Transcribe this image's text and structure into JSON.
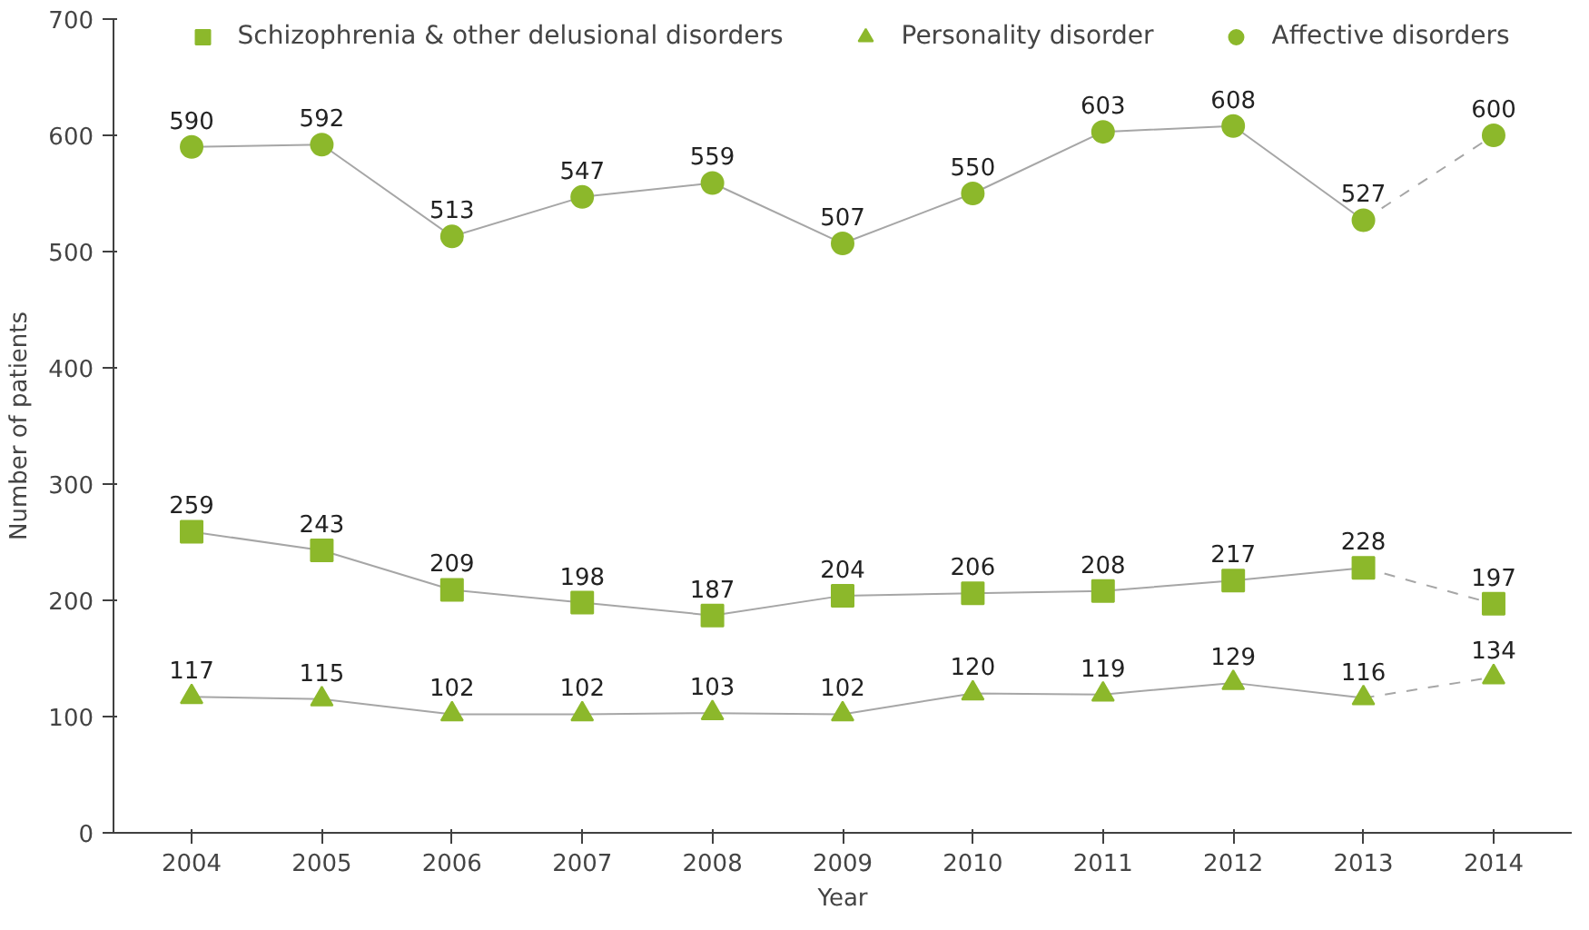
{
  "chart_data": {
    "type": "line",
    "xlabel": "Year",
    "ylabel": "Number of patients",
    "categories": [
      "2004",
      "2005",
      "2006",
      "2007",
      "2008",
      "2009",
      "2010",
      "2011",
      "2012",
      "2013",
      "2014"
    ],
    "ylim": [
      0,
      700
    ],
    "yticks": [
      0,
      100,
      200,
      300,
      400,
      500,
      600,
      700
    ],
    "grid": false,
    "legend": "top",
    "data_labels": true,
    "series": [
      {
        "marker": "none",
        "line_style": "solid",
        "color": "#a6a6a6",
        "values": [
          259,
          243,
          209,
          198,
          187,
          204,
          206,
          208,
          217,
          228,
          null
        ],
        "value_labels": [
          null,
          null,
          null,
          null,
          null,
          null,
          null,
          null,
          null,
          null,
          null
        ]
      },
      {
        "marker": "none",
        "line_style": "solid",
        "color": "#a6a6a6",
        "values": [
          117,
          115,
          102,
          102,
          103,
          102,
          120,
          119,
          129,
          116,
          null
        ],
        "value_labels": [
          null,
          null,
          null,
          null,
          null,
          null,
          null,
          null,
          null,
          null,
          null
        ]
      },
      {
        "marker": "none",
        "line_style": "solid",
        "color": "#a6a6a6",
        "values": [
          590,
          592,
          513,
          547,
          559,
          507,
          550,
          603,
          608,
          527,
          null
        ],
        "value_labels": [
          null,
          null,
          null,
          null,
          null,
          null,
          null,
          null,
          null,
          null,
          null
        ]
      },
      {
        "marker": "none",
        "line_style": "dashed",
        "color": "#a6a6a6",
        "values": [
          null,
          null,
          null,
          null,
          null,
          null,
          null,
          null,
          null,
          228,
          197
        ],
        "value_labels": [
          null,
          null,
          null,
          null,
          null,
          null,
          null,
          null,
          null,
          null,
          null
        ]
      },
      {
        "marker": "none",
        "line_style": "dashed",
        "color": "#a6a6a6",
        "values": [
          null,
          null,
          null,
          null,
          null,
          null,
          null,
          null,
          null,
          116,
          134
        ],
        "value_labels": [
          null,
          null,
          null,
          null,
          null,
          null,
          null,
          null,
          null,
          null,
          null
        ]
      },
      {
        "marker": "none",
        "line_style": "dashed",
        "color": "#a6a6a6",
        "values": [
          null,
          null,
          null,
          null,
          null,
          null,
          null,
          null,
          null,
          527,
          600
        ],
        "value_labels": [
          null,
          null,
          null,
          null,
          null,
          null,
          null,
          null,
          null,
          null,
          null
        ]
      },
      {
        "name": "Schizophrenia & other delusional disorders",
        "type": "scatter",
        "marker": "square",
        "color": "#8cb82b",
        "values": [
          259,
          243,
          209,
          198,
          187,
          204,
          206,
          208,
          217,
          228,
          197
        ]
      },
      {
        "name": "Personality disorder",
        "type": "scatter",
        "marker": "triangle",
        "color": "#8cb82b",
        "values": [
          117,
          115,
          102,
          102,
          103,
          102,
          120,
          119,
          129,
          116,
          134
        ]
      },
      {
        "name": "Affective disorders",
        "type": "scatter",
        "marker": "circle",
        "color": "#8cb82b",
        "values": [
          590,
          592,
          513,
          547,
          559,
          507,
          550,
          603,
          608,
          527,
          600
        ]
      }
    ]
  }
}
